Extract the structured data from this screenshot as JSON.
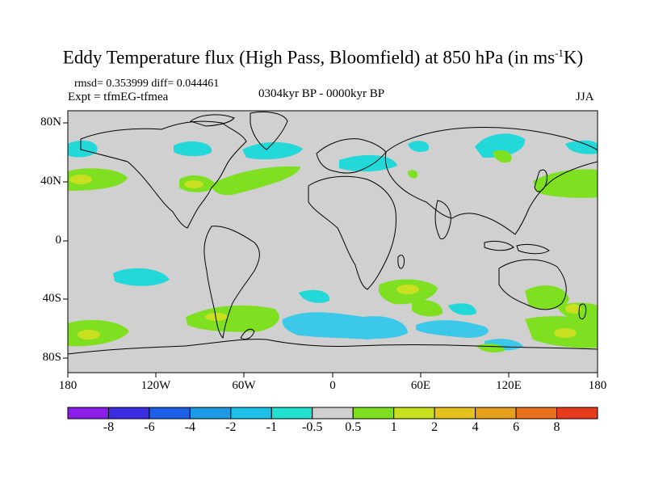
{
  "title": {
    "main": "Eddy Temperature flux (High Pass, Bloomfield) at 850 hPa (in ms",
    "sup": "-1",
    "tail": "K)"
  },
  "stats": "rmsd= 0.353999 diff= 0.044461",
  "experiment": "Expt = tfmEG-tfmea",
  "period": "0304kyr BP - 0000kyr BP",
  "season": "JJA",
  "lat_labels": [
    "80N",
    "40N",
    "0",
    "40S",
    "80S"
  ],
  "lon_labels": [
    "180",
    "120W",
    "60W",
    "0",
    "60E",
    "120E",
    "180"
  ],
  "colorbar": {
    "colors": [
      "#8a1ee8",
      "#3a2ee0",
      "#1c5fe6",
      "#1c9ae6",
      "#1cc0e8",
      "#22e0d0",
      "#d0d0d0",
      "#7ee020",
      "#c8e020",
      "#e6c01c",
      "#e6a01c",
      "#e6701c",
      "#e63c1c"
    ],
    "labels": [
      "-8",
      "-6",
      "-4",
      "-2",
      "-1",
      "-0.5",
      "0.5",
      "1",
      "2",
      "4",
      "6",
      "8"
    ]
  },
  "map_colors": {
    "background": "#d0d0d0",
    "cyan": "#22d8d8",
    "light_blue": "#3cc8e8",
    "green": "#7ee020",
    "yellow": "#c8e020",
    "coast": "#000000"
  }
}
